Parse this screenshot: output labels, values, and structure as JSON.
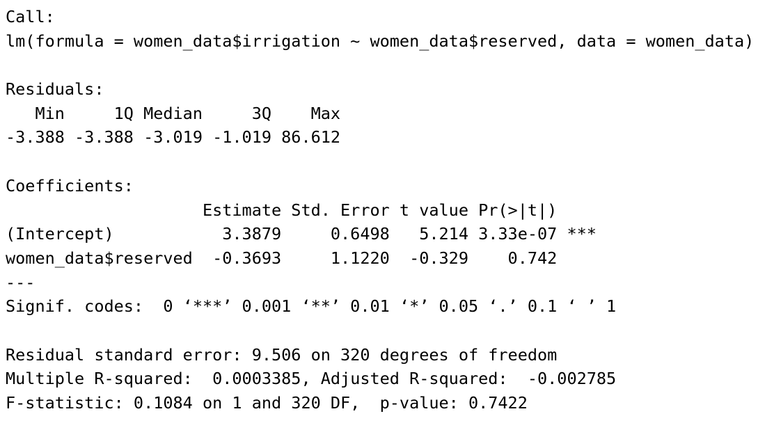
{
  "output": {
    "lines": [
      "Call:",
      "lm(formula = women_data$irrigation ~ women_data$reserved, data = women_data)",
      "",
      "Residuals:",
      "   Min     1Q Median     3Q    Max ",
      "-3.388 -3.388 -3.019 -1.019 86.612 ",
      "",
      "Coefficients:",
      "                    Estimate Std. Error t value Pr(>|t|)    ",
      "(Intercept)           3.3879     0.6498   5.214 3.33e-07 ***",
      "women_data$reserved  -0.3693     1.1220  -0.329    0.742    ",
      "---",
      "Signif. codes:  0 ‘***’ 0.001 ‘**’ 0.01 ‘*’ 0.05 ‘.’ 0.1 ‘ ’ 1",
      "",
      "Residual standard error: 9.506 on 320 degrees of freedom",
      "Multiple R-squared:  0.0003385,\tAdjusted R-squared:  -0.002785 ",
      "F-statistic: 0.1084 on 1 and 320 DF,  p-value: 0.7422"
    ]
  }
}
